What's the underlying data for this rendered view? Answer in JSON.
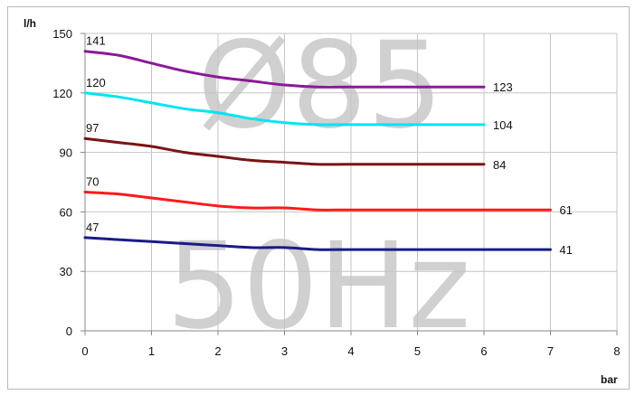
{
  "chart_data": {
    "type": "line",
    "ylabel": "l/h",
    "xlabel": "bar",
    "xlim": [
      0,
      8
    ],
    "ylim": [
      0,
      150
    ],
    "xticks": [
      0,
      1,
      2,
      3,
      4,
      5,
      6,
      7,
      8
    ],
    "yticks": [
      0,
      30,
      60,
      90,
      120,
      150
    ],
    "grid": true,
    "watermark": [
      "Ø85",
      "50Hz"
    ],
    "series": [
      {
        "color": "#8b1a9a",
        "start_label": "141",
        "end_label": "123",
        "points": [
          [
            0,
            141
          ],
          [
            0.5,
            139
          ],
          [
            1,
            135
          ],
          [
            1.5,
            131
          ],
          [
            2,
            128
          ],
          [
            2.5,
            126
          ],
          [
            3,
            124
          ],
          [
            3.5,
            123
          ],
          [
            4,
            123
          ],
          [
            5,
            123
          ],
          [
            6,
            123
          ]
        ]
      },
      {
        "color": "#00e5f0",
        "start_label": "120",
        "end_label": "104",
        "points": [
          [
            0,
            120
          ],
          [
            0.5,
            118
          ],
          [
            1,
            115
          ],
          [
            1.5,
            112
          ],
          [
            2,
            110
          ],
          [
            2.5,
            107
          ],
          [
            3,
            105
          ],
          [
            3.5,
            104
          ],
          [
            4,
            104
          ],
          [
            5,
            104
          ],
          [
            6,
            104
          ]
        ]
      },
      {
        "color": "#7a1414",
        "start_label": "97",
        "end_label": "84",
        "points": [
          [
            0,
            97
          ],
          [
            0.5,
            95
          ],
          [
            1,
            93
          ],
          [
            1.5,
            90
          ],
          [
            2,
            88
          ],
          [
            2.5,
            86
          ],
          [
            3,
            85
          ],
          [
            3.5,
            84
          ],
          [
            4,
            84
          ],
          [
            5,
            84
          ],
          [
            6,
            84
          ]
        ]
      },
      {
        "color": "#ff1a1a",
        "start_label": "70",
        "end_label": "61",
        "points": [
          [
            0,
            70
          ],
          [
            0.5,
            69
          ],
          [
            1,
            67
          ],
          [
            1.5,
            65
          ],
          [
            2,
            63
          ],
          [
            2.5,
            62
          ],
          [
            3,
            62
          ],
          [
            3.5,
            61
          ],
          [
            4,
            61
          ],
          [
            5,
            61
          ],
          [
            6,
            61
          ],
          [
            7,
            61
          ]
        ]
      },
      {
        "color": "#1a1a8a",
        "start_label": "47",
        "end_label": "41",
        "points": [
          [
            0,
            47
          ],
          [
            0.5,
            46
          ],
          [
            1,
            45
          ],
          [
            1.5,
            44
          ],
          [
            2,
            43
          ],
          [
            2.5,
            42
          ],
          [
            3,
            42
          ],
          [
            3.5,
            41
          ],
          [
            4,
            41
          ],
          [
            5,
            41
          ],
          [
            6,
            41
          ],
          [
            7,
            41
          ]
        ]
      }
    ]
  }
}
